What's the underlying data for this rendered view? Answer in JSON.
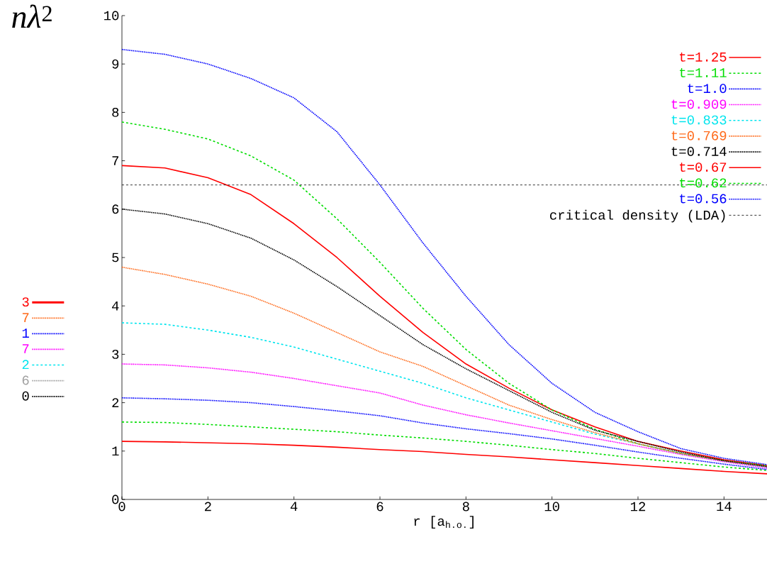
{
  "chart_data": [
    {
      "type": "line",
      "xlabel": "r [a$_{h.o.}$]",
      "ylabel": "*nλ*$^{2}$",
      "x": [
        0,
        1,
        2,
        3,
        4,
        5,
        6,
        7,
        8,
        9,
        10,
        11,
        12,
        13,
        14,
        15
      ],
      "xlim": [
        0,
        15
      ],
      "ylim": [
        0,
        10
      ],
      "xticks": [
        0,
        2,
        4,
        6,
        8,
        10,
        12,
        14
      ],
      "yticks": [
        0,
        1,
        2,
        3,
        4,
        5,
        6,
        7,
        8,
        9,
        10
      ],
      "legend": "top right",
      "series": [
        {
          "name": "t=1.25",
          "color": "#ff0000",
          "line_style": "solid",
          "values": [
            6.9,
            6.85,
            6.65,
            6.3,
            5.7,
            5.0,
            4.2,
            3.45,
            2.8,
            2.3,
            1.85,
            1.5,
            1.2,
            1.0,
            0.82,
            0.7
          ]
        },
        {
          "name": "t=1.11",
          "color": "#00dd00",
          "line_style": "dashed",
          "values": [
            7.8,
            7.65,
            7.45,
            7.1,
            6.6,
            5.8,
            4.9,
            3.95,
            3.1,
            2.4,
            1.85,
            1.45,
            1.15,
            0.95,
            0.8,
            0.7
          ]
        },
        {
          "name": "t=1.0",
          "color": "#0000ff",
          "line_style": "dotted",
          "values": [
            9.3,
            9.2,
            9.0,
            8.7,
            8.3,
            7.6,
            6.5,
            5.3,
            4.2,
            3.2,
            2.4,
            1.8,
            1.4,
            1.05,
            0.85,
            0.72
          ]
        },
        {
          "name": "t=0.909",
          "color": "#ff00ff",
          "line_style": "dotted",
          "values": [
            2.8,
            2.78,
            2.72,
            2.63,
            2.5,
            2.35,
            2.2,
            1.95,
            1.75,
            1.58,
            1.42,
            1.26,
            1.1,
            0.93,
            0.78,
            0.65
          ]
        },
        {
          "name": "t=0.833",
          "color": "#00e5ee",
          "line_style": "dashed",
          "values": [
            3.65,
            3.62,
            3.5,
            3.35,
            3.15,
            2.9,
            2.65,
            2.4,
            2.1,
            1.85,
            1.6,
            1.35,
            1.15,
            0.95,
            0.8,
            0.67
          ]
        },
        {
          "name": "t=0.769",
          "color": "#ff6a1a",
          "line_style": "dotted",
          "values": [
            4.8,
            4.65,
            4.45,
            4.2,
            3.85,
            3.45,
            3.05,
            2.75,
            2.35,
            1.95,
            1.65,
            1.38,
            1.15,
            0.95,
            0.8,
            0.68
          ]
        },
        {
          "name": "t=0.714",
          "color": "#000000",
          "line_style": "dotted",
          "values": [
            6.0,
            5.9,
            5.7,
            5.4,
            4.95,
            4.4,
            3.8,
            3.2,
            2.7,
            2.25,
            1.8,
            1.43,
            1.2,
            0.98,
            0.8,
            0.68
          ]
        },
        {
          "name": "t=0.67",
          "color": "#ff0000",
          "line_style": "solid",
          "values": [
            1.2,
            1.19,
            1.17,
            1.15,
            1.12,
            1.08,
            1.03,
            0.99,
            0.93,
            0.88,
            0.82,
            0.76,
            0.7,
            0.64,
            0.58,
            0.53
          ]
        },
        {
          "name": "t=0.62",
          "color": "#00dd00",
          "line_style": "dashed",
          "values": [
            1.6,
            1.59,
            1.55,
            1.5,
            1.45,
            1.4,
            1.33,
            1.27,
            1.2,
            1.12,
            1.03,
            0.95,
            0.85,
            0.76,
            0.67,
            0.6
          ]
        },
        {
          "name": "t=0.56",
          "color": "#0000ff",
          "line_style": "dotted",
          "values": [
            2.1,
            2.08,
            2.05,
            2.0,
            1.92,
            1.83,
            1.73,
            1.58,
            1.46,
            1.36,
            1.25,
            1.12,
            0.98,
            0.85,
            0.73,
            0.62
          ]
        }
      ],
      "ref_lines": [
        {
          "axis": "y",
          "value": 6.5,
          "label": "critical density (LDA)",
          "color": "#000000",
          "line_style": "dashed"
        }
      ]
    },
    {
      "type": "other",
      "legend": "right",
      "series": [
        {
          "name": "3",
          "color": "#ff0000",
          "line_style": "solid"
        },
        {
          "name": "7",
          "color": "#ff6a1a",
          "line_style": "dotted"
        },
        {
          "name": "1",
          "color": "#0000ff",
          "line_style": "dotted"
        },
        {
          "name": "7",
          "color": "#ff00ff",
          "line_style": "dotted"
        },
        {
          "name": "2",
          "color": "#00e5ee",
          "line_style": "dashed"
        },
        {
          "name": "6",
          "color": "#a0a0a0",
          "line_style": "dotted"
        },
        {
          "name": "0",
          "color": "#000000",
          "line_style": "dotted"
        }
      ]
    }
  ]
}
